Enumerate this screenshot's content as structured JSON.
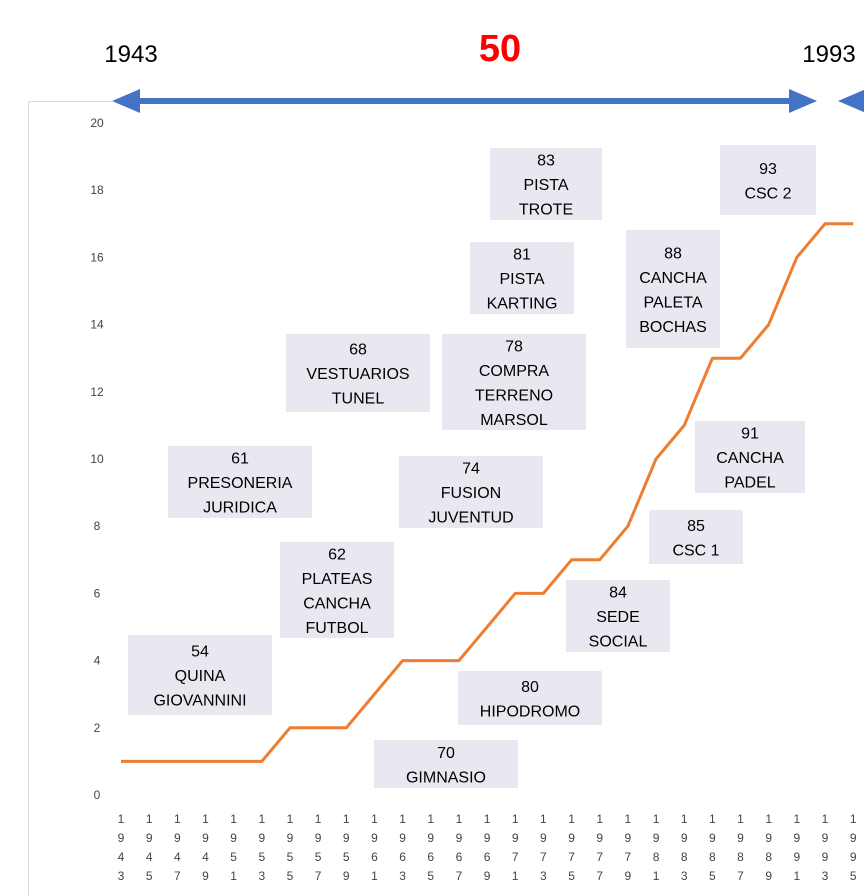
{
  "header": {
    "start_year": "1943",
    "span_label": "50",
    "end_year": "1993",
    "arrow_color": "#4472c4",
    "span_color": "#ff0000"
  },
  "chart_data": {
    "type": "line",
    "title": "",
    "xlabel": "",
    "ylabel": "",
    "ylim": [
      0,
      20
    ],
    "yticks": [
      0,
      2,
      4,
      6,
      8,
      10,
      12,
      14,
      16,
      18,
      20
    ],
    "grid": false,
    "line_color": "#ed7d31",
    "categories": [
      "1943",
      "1945",
      "1947",
      "1949",
      "1951",
      "1953",
      "1955",
      "1957",
      "1959",
      "1961",
      "1963",
      "1965",
      "1967",
      "1969",
      "1971",
      "1973",
      "1975",
      "1977",
      "1979",
      "1981",
      "1983",
      "1985",
      "1987",
      "1989",
      "1991",
      "1993",
      "1995"
    ],
    "series": [
      {
        "values": [
          1,
          1,
          1,
          1,
          1,
          1,
          2,
          2,
          2,
          3,
          4,
          4,
          4,
          5,
          6,
          6,
          7,
          7,
          8,
          10,
          11,
          13,
          13,
          14,
          16,
          17,
          17
        ]
      }
    ],
    "annotations": [
      {
        "lines": [
          "54",
          "QUINA",
          "GIOVANNINI"
        ]
      },
      {
        "lines": [
          "61",
          "PRESONERIA",
          "JURIDICA"
        ]
      },
      {
        "lines": [
          "62",
          "PLATEAS",
          "CANCHA",
          "FUTBOL"
        ]
      },
      {
        "lines": [
          "68",
          "VESTUARIOS",
          "TUNEL"
        ]
      },
      {
        "lines": [
          "70",
          "GIMNASIO"
        ]
      },
      {
        "lines": [
          "74",
          "FUSION",
          "JUVENTUD"
        ]
      },
      {
        "lines": [
          "78",
          "COMPRA",
          "TERRENO",
          "MARSOL"
        ]
      },
      {
        "lines": [
          "80",
          "HIPODROMO"
        ]
      },
      {
        "lines": [
          "81",
          "PISTA",
          "KARTING"
        ]
      },
      {
        "lines": [
          "83",
          "PISTA",
          "TROTE"
        ]
      },
      {
        "lines": [
          "84",
          "SEDE",
          "SOCIAL"
        ]
      },
      {
        "lines": [
          "85",
          "CSC 1"
        ]
      },
      {
        "lines": [
          "88",
          "CANCHA",
          "PALETA",
          "BOCHAS"
        ]
      },
      {
        "lines": [
          "91",
          "CANCHA",
          "PADEL"
        ]
      },
      {
        "lines": [
          "93",
          "CSC 2"
        ]
      }
    ],
    "annotation_fill": "#e8e9f0"
  }
}
